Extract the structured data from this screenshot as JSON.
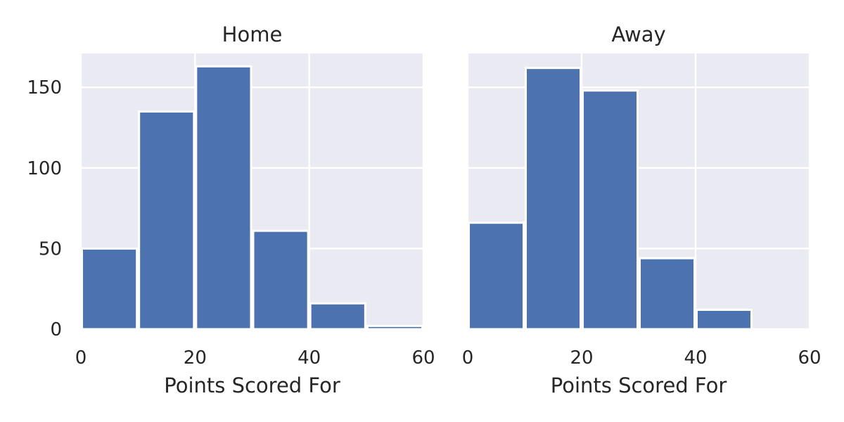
{
  "chart_data": [
    {
      "type": "bar",
      "title": "Home",
      "xlabel": "Points Scored For",
      "ylabel": "",
      "xlim": [
        0,
        60
      ],
      "ylim": [
        0,
        171
      ],
      "xticks": [
        "0",
        "20",
        "40",
        "60"
      ],
      "yticks": [
        "0",
        "50",
        "100",
        "150"
      ],
      "bins": [
        [
          0,
          10
        ],
        [
          10,
          20
        ],
        [
          20,
          30
        ],
        [
          30,
          40
        ],
        [
          40,
          50
        ],
        [
          50,
          60
        ]
      ],
      "values": [
        50,
        135,
        163,
        61,
        16,
        2
      ],
      "grid": true,
      "colors": {
        "bar": "#4c72b0",
        "background": "#eaeaf2",
        "grid": "#ffffff"
      }
    },
    {
      "type": "bar",
      "title": "Away",
      "xlabel": "Points Scored For",
      "ylabel": "",
      "xlim": [
        0,
        60
      ],
      "ylim": [
        0,
        171
      ],
      "xticks": [
        "0",
        "20",
        "40",
        "60"
      ],
      "yticks": [],
      "bins": [
        [
          0,
          10
        ],
        [
          10,
          20
        ],
        [
          20,
          30
        ],
        [
          30,
          40
        ],
        [
          40,
          50
        ]
      ],
      "values": [
        66,
        162,
        148,
        44,
        12
      ],
      "grid": true,
      "colors": {
        "bar": "#4c72b0",
        "background": "#eaeaf2",
        "grid": "#ffffff"
      }
    }
  ]
}
